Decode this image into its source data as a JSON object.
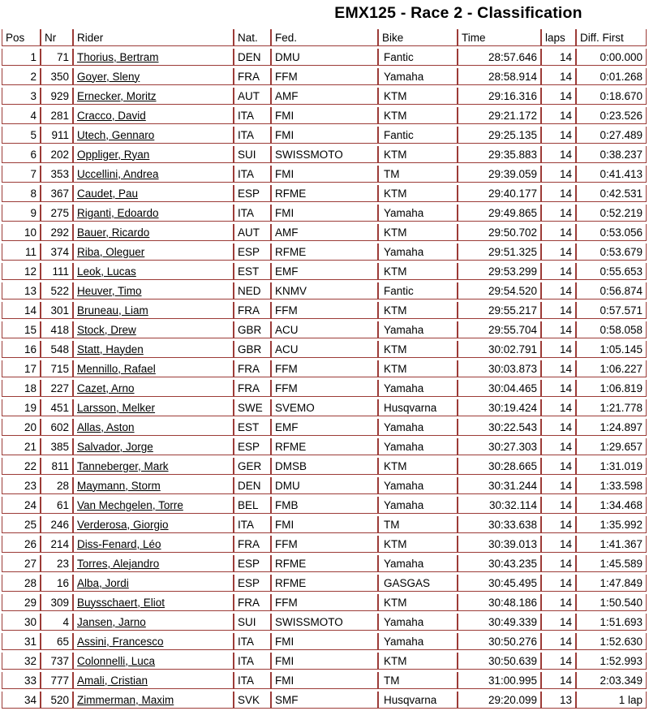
{
  "title": "EMX125 - Race 2 - Classification",
  "colors": {
    "border": "#9c3b37",
    "text": "#000000",
    "link": "#000000",
    "background": "#ffffff"
  },
  "table": {
    "columns": [
      {
        "key": "pos",
        "label": "Pos"
      },
      {
        "key": "nr",
        "label": "Nr"
      },
      {
        "key": "rider",
        "label": "Rider"
      },
      {
        "key": "nat",
        "label": "Nat."
      },
      {
        "key": "fed",
        "label": "Fed."
      },
      {
        "key": "bike",
        "label": "Bike"
      },
      {
        "key": "time",
        "label": "Time"
      },
      {
        "key": "laps",
        "label": "laps"
      },
      {
        "key": "diff_first",
        "label": "Diff. First"
      }
    ],
    "rows": [
      [
        "1",
        "71",
        "Thorius, Bertram",
        "DEN",
        "DMU",
        "Fantic",
        "28:57.646",
        "14",
        "0:00.000"
      ],
      [
        "2",
        "350",
        "Goyer, Sleny",
        "FRA",
        "FFM",
        "Yamaha",
        "28:58.914",
        "14",
        "0:01.268"
      ],
      [
        "3",
        "929",
        "Ernecker, Moritz",
        "AUT",
        "AMF",
        "KTM",
        "29:16.316",
        "14",
        "0:18.670"
      ],
      [
        "4",
        "281",
        "Cracco, David",
        "ITA",
        "FMI",
        "KTM",
        "29:21.172",
        "14",
        "0:23.526"
      ],
      [
        "5",
        "911",
        "Utech, Gennaro",
        "ITA",
        "FMI",
        "Fantic",
        "29:25.135",
        "14",
        "0:27.489"
      ],
      [
        "6",
        "202",
        "Oppliger, Ryan",
        "SUI",
        "SWISSMOTO",
        "KTM",
        "29:35.883",
        "14",
        "0:38.237"
      ],
      [
        "7",
        "353",
        "Uccellini, Andrea",
        "ITA",
        "FMI",
        "TM",
        "29:39.059",
        "14",
        "0:41.413"
      ],
      [
        "8",
        "367",
        "Caudet, Pau",
        "ESP",
        "RFME",
        "KTM",
        "29:40.177",
        "14",
        "0:42.531"
      ],
      [
        "9",
        "275",
        "Riganti, Edoardo",
        "ITA",
        "FMI",
        "Yamaha",
        "29:49.865",
        "14",
        "0:52.219"
      ],
      [
        "10",
        "292",
        "Bauer, Ricardo",
        "AUT",
        "AMF",
        "KTM",
        "29:50.702",
        "14",
        "0:53.056"
      ],
      [
        "11",
        "374",
        "Riba, Oleguer",
        "ESP",
        "RFME",
        "Yamaha",
        "29:51.325",
        "14",
        "0:53.679"
      ],
      [
        "12",
        "111",
        "Leok, Lucas",
        "EST",
        "EMF",
        "KTM",
        "29:53.299",
        "14",
        "0:55.653"
      ],
      [
        "13",
        "522",
        "Heuver, Timo",
        "NED",
        "KNMV",
        "Fantic",
        "29:54.520",
        "14",
        "0:56.874"
      ],
      [
        "14",
        "301",
        "Bruneau, Liam",
        "FRA",
        "FFM",
        "KTM",
        "29:55.217",
        "14",
        "0:57.571"
      ],
      [
        "15",
        "418",
        "Stock, Drew",
        "GBR",
        "ACU",
        "Yamaha",
        "29:55.704",
        "14",
        "0:58.058"
      ],
      [
        "16",
        "548",
        "Statt, Hayden",
        "GBR",
        "ACU",
        "KTM",
        "30:02.791",
        "14",
        "1:05.145"
      ],
      [
        "17",
        "715",
        "Mennillo, Rafael",
        "FRA",
        "FFM",
        "KTM",
        "30:03.873",
        "14",
        "1:06.227"
      ],
      [
        "18",
        "227",
        "Cazet, Arno",
        "FRA",
        "FFM",
        "Yamaha",
        "30:04.465",
        "14",
        "1:06.819"
      ],
      [
        "19",
        "451",
        "Larsson, Melker",
        "SWE",
        "SVEMO",
        "Husqvarna",
        "30:19.424",
        "14",
        "1:21.778"
      ],
      [
        "20",
        "602",
        "Allas, Aston",
        "EST",
        "EMF",
        "Yamaha",
        "30:22.543",
        "14",
        "1:24.897"
      ],
      [
        "21",
        "385",
        "Salvador, Jorge",
        "ESP",
        "RFME",
        "Yamaha",
        "30:27.303",
        "14",
        "1:29.657"
      ],
      [
        "22",
        "811",
        "Tanneberger, Mark",
        "GER",
        "DMSB",
        "KTM",
        "30:28.665",
        "14",
        "1:31.019"
      ],
      [
        "23",
        "28",
        "Maymann, Storm",
        "DEN",
        "DMU",
        "Yamaha",
        "30:31.244",
        "14",
        "1:33.598"
      ],
      [
        "24",
        "61",
        "Van Mechgelen, Torre",
        "BEL",
        "FMB",
        "Yamaha",
        "30:32.114",
        "14",
        "1:34.468"
      ],
      [
        "25",
        "246",
        "Verderosa, Giorgio",
        "ITA",
        "FMI",
        "TM",
        "30:33.638",
        "14",
        "1:35.992"
      ],
      [
        "26",
        "214",
        "Diss-Fenard, Léo",
        "FRA",
        "FFM",
        "KTM",
        "30:39.013",
        "14",
        "1:41.367"
      ],
      [
        "27",
        "23",
        "Torres, Alejandro",
        "ESP",
        "RFME",
        "Yamaha",
        "30:43.235",
        "14",
        "1:45.589"
      ],
      [
        "28",
        "16",
        "Alba, Jordi",
        "ESP",
        "RFME",
        "GASGAS",
        "30:45.495",
        "14",
        "1:47.849"
      ],
      [
        "29",
        "309",
        "Buysschaert, Eliot",
        "FRA",
        "FFM",
        "KTM",
        "30:48.186",
        "14",
        "1:50.540"
      ],
      [
        "30",
        "4",
        "Jansen, Jarno",
        "SUI",
        "SWISSMOTO",
        "Yamaha",
        "30:49.339",
        "14",
        "1:51.693"
      ],
      [
        "31",
        "65",
        "Assini, Francesco",
        "ITA",
        "FMI",
        "Yamaha",
        "30:50.276",
        "14",
        "1:52.630"
      ],
      [
        "32",
        "737",
        "Colonnelli, Luca",
        "ITA",
        "FMI",
        "KTM",
        "30:50.639",
        "14",
        "1:52.993"
      ],
      [
        "33",
        "777",
        "Amali, Cristian",
        "ITA",
        "FMI",
        "TM",
        "31:00.995",
        "14",
        "2:03.349"
      ],
      [
        "34",
        "520",
        "Zimmerman, Maxim",
        "SVK",
        "SMF",
        "Husqvarna",
        "29:20.099",
        "13",
        "1 lap"
      ]
    ]
  }
}
